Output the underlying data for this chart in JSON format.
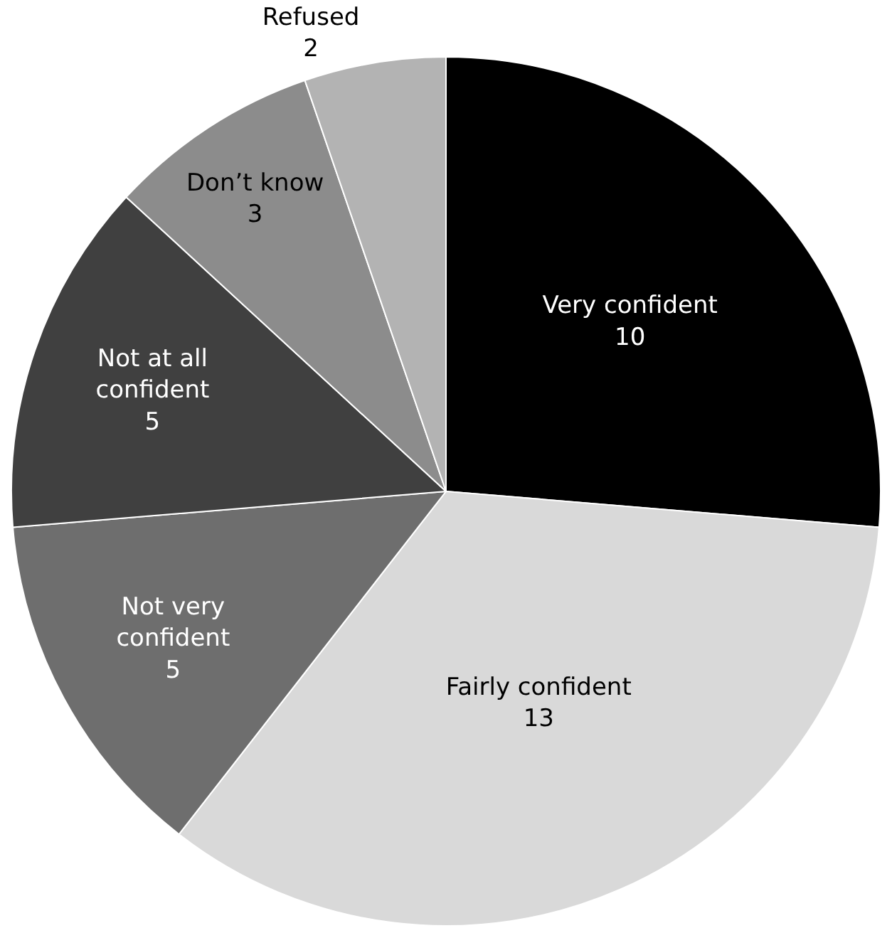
{
  "chart_data": {
    "type": "pie",
    "categories": [
      "Very confident",
      "Fairly confident",
      "Not very confident",
      "Not at all confident",
      "Don’t know",
      "Refused"
    ],
    "values": [
      10,
      13,
      5,
      5,
      3,
      2
    ],
    "colors": [
      "#000000",
      "#d9d9d9",
      "#6e6e6e",
      "#404040",
      "#8c8c8c",
      "#b3b3b3"
    ],
    "data_labels": true
  }
}
